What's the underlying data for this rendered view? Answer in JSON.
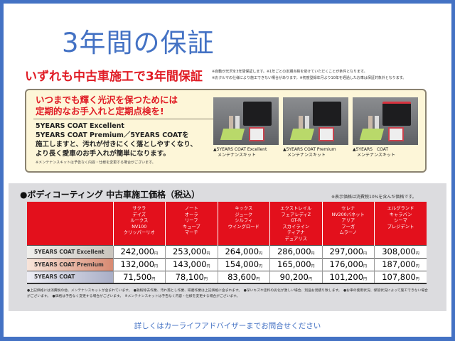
{
  "title": "3年間の保証",
  "headline": "いずれも中古車施工で3年間保証",
  "headline_notes": [
    "※自動が光沢を3年間保証します。※1年ごとの定期点検を受けていただくことが条件となります。",
    "※おクルマの仕様により施工できない場合があります。※初度登録年月より10年を経過したお車は保証対象外となります。"
  ],
  "promo": {
    "title_lines": [
      "いつまでも輝く光沢を保つためには",
      "定期的なお手入れと定期点検を!"
    ],
    "body_lines": [
      "5YEARS COAT Excellent",
      "5YEARS COAT Premium／5YEARS COATを",
      "施工しますと、汚れが付きにくく落としやすくなり、",
      "より長く愛車のお手入れが簡単になります。"
    ],
    "note": "※メンテナンスキットは予告なく内容・仕様を変更する場合がございます。",
    "kits": [
      {
        "name": "▲5YEARS COAT Excellent",
        "sub": "メンテナンスキット",
        "handle": "#1d1d1f"
      },
      {
        "name": "▲5YEARS COAT Premium",
        "sub": "メンテナンスキット",
        "handle": "#1d1d1f"
      },
      {
        "name": "▲5YEARS　COAT",
        "sub": "メンテナンスキット",
        "handle": "#d9333f"
      }
    ]
  },
  "pricing": {
    "title": "●ボディコーティング 中古車施工価格（税込）",
    "tax_note": "※表示価格は消費税10%を含んだ価格です。",
    "yen": "円",
    "columns": [
      [
        "サクラ",
        "デイズ",
        "ルークス",
        "NV100",
        "クリッパーリオ"
      ],
      [
        "ノート",
        "オーラ",
        "リーフ",
        "キューブ",
        "マーチ"
      ],
      [
        "キックス",
        "ジューク",
        "シルフィ",
        "ウイングロード"
      ],
      [
        "エクストレイル",
        "フェアレディZ",
        "GT-R",
        "スカイライン",
        "ティアナ",
        "デュアリス"
      ],
      [
        "セレナ",
        "NV200バネット",
        "アリア",
        "フーガ",
        "ムラーノ"
      ],
      [
        "エルグランド",
        "キャラバン",
        "シーマ",
        "プレジデント"
      ]
    ],
    "rows": [
      {
        "label": "5YEARS COAT Excellent",
        "prices": [
          "242,000",
          "253,000",
          "264,000",
          "286,000",
          "297,000",
          "308,000"
        ]
      },
      {
        "label": "5YEARS COAT Premium",
        "prices": [
          "132,000",
          "143,000",
          "154,000",
          "165,000",
          "176,000",
          "187,000"
        ]
      },
      {
        "label": "5YEARS COAT",
        "prices": [
          "71,500",
          "78,100",
          "83,600",
          "90,200",
          "101,200",
          "107,800"
        ]
      }
    ],
    "footnotes": "●上記価格には消費税の他、メンテナンスキットが含まれています。　●鉄粉除去作業、汚れ落とし作業、研磨作業は上記価格に含まれます。　●深いキズや塗料の劣化が激しい場合、別途お見積り致します。　●お車の使用状況、保管状況によって施工できない場合がございます。　●価格は予告なく変更する場合がございます。　※メンテナンスキットは予告なく内容・仕様を変更する場合がございます。"
  },
  "contact": "詳しくはカーライフアドバイザーまでお問合せください",
  "colors": {
    "frame": "#4472c4",
    "accent_red": "#e3101c"
  }
}
